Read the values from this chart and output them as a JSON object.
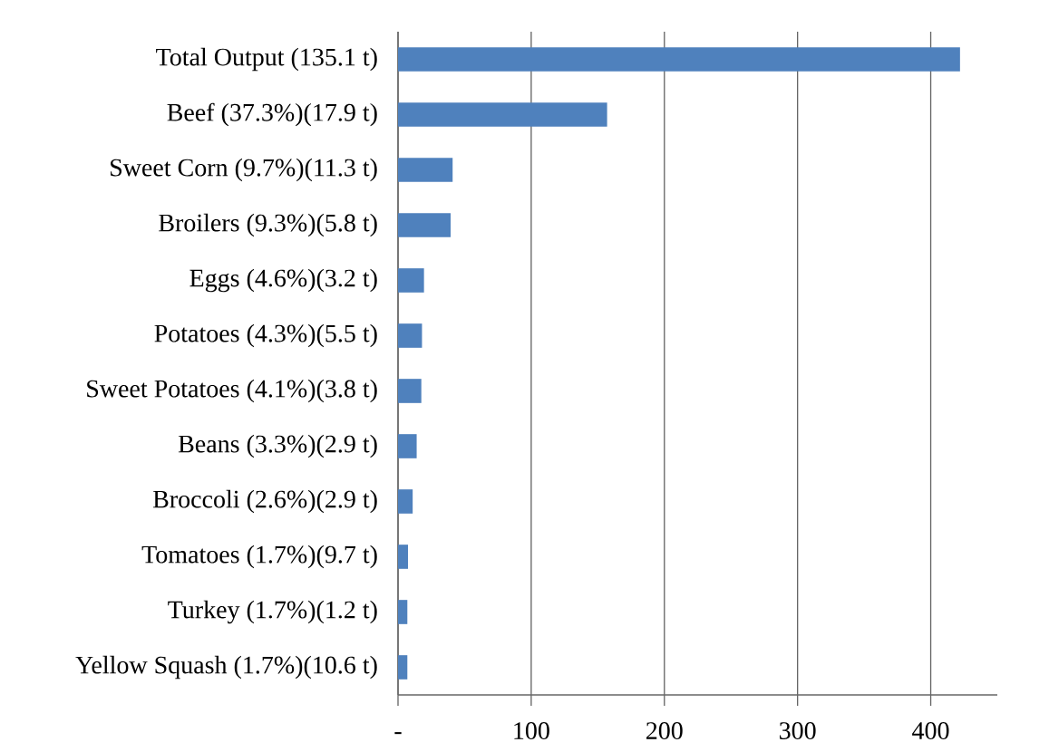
{
  "chart_data": {
    "type": "bar",
    "orientation": "horizontal",
    "color": "#4f81bd",
    "grid": "x",
    "categories": [
      "Total Output (135.1 t)",
      "Beef (37.3%)(17.9 t)",
      "Sweet Corn (9.7%)(11.3 t)",
      "Broilers (9.3%)(5.8 t)",
      "Eggs (4.6%)(3.2 t)",
      "Potatoes (4.3%)(5.5 t)",
      "Sweet Potatoes (4.1%)(3.8 t)",
      "Beans (3.3%)(2.9 t)",
      "Broccoli (2.6%)(2.9 t)",
      "Tomatoes (1.7%)(9.7 t)",
      "Turkey (1.7%)(1.2 t)",
      "Yellow Squash (1.7%)(10.6 t)"
    ],
    "values": [
      422,
      157,
      41,
      39.5,
      19.5,
      18,
      17.5,
      14,
      11,
      7.5,
      7,
      7
    ],
    "xlim": [
      0,
      450
    ],
    "xticks": [
      {
        "value": 0,
        "label": "-"
      },
      100,
      200,
      300,
      400
    ]
  }
}
